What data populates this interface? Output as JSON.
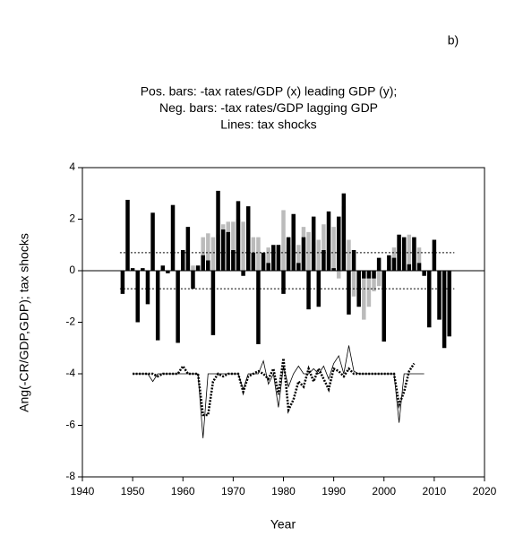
{
  "panel_label": "b)",
  "chart_data": {
    "type": "bar",
    "title_lines": [
      "Pos. bars: -tax rates/GDP (x) leading GDP (y);",
      "Neg. bars: -tax rates/GDP lagging GDP",
      "Lines: tax shocks"
    ],
    "xlabel": "Year",
    "ylabel": "Ang(-CR/GDP,GDP); tax shocks",
    "xlim": [
      1940,
      2020
    ],
    "xticks": [
      1940,
      1950,
      1960,
      1970,
      1980,
      1990,
      2000,
      2010,
      2020
    ],
    "ylim": [
      -8,
      4
    ],
    "yticks": [
      -8,
      -6,
      -4,
      -2,
      0,
      2,
      4
    ],
    "reference_lines": [
      0.7,
      -0.7
    ],
    "series": [
      {
        "kind": "bar",
        "color": "#bbbbbb",
        "x": [
          1960,
          1961,
          1962,
          1963,
          1964,
          1965,
          1966,
          1967,
          1968,
          1969,
          1970,
          1971,
          1972,
          1973,
          1974,
          1975,
          1976,
          1977,
          1978,
          1979,
          1980,
          1981,
          1982,
          1983,
          1984,
          1985,
          1986,
          1987,
          1988,
          1989,
          1990,
          1991,
          1992,
          1993,
          1994,
          1995,
          1996,
          1997,
          1998,
          1999,
          2000,
          2001,
          2002,
          2003,
          2004,
          2005,
          2006,
          2007
        ],
        "values": [
          0.8,
          0.3,
          0.2,
          0.2,
          1.3,
          1.45,
          1.3,
          1.4,
          1.8,
          1.9,
          1.9,
          2.0,
          1.9,
          1.6,
          1.3,
          1.3,
          0.6,
          0.9,
          0.6,
          1.0,
          2.35,
          1.0,
          1.4,
          1.0,
          1.7,
          1.5,
          1.1,
          1.2,
          1.8,
          0.7,
          1.7,
          -0.3,
          2.5,
          1.2,
          -1.0,
          -1.2,
          -1.9,
          -1.4,
          -0.8,
          -0.6,
          -0.3,
          0.2,
          0.9,
          1.2,
          1.0,
          1.4,
          1.3,
          0.9
        ]
      },
      {
        "kind": "bar",
        "color": "#000000",
        "x": [
          1948,
          1949,
          1950,
          1951,
          1952,
          1953,
          1954,
          1955,
          1956,
          1957,
          1958,
          1959,
          1960,
          1961,
          1962,
          1963,
          1964,
          1965,
          1966,
          1967,
          1968,
          1969,
          1970,
          1971,
          1972,
          1973,
          1974,
          1975,
          1976,
          1977,
          1978,
          1979,
          1980,
          1981,
          1982,
          1983,
          1984,
          1985,
          1986,
          1987,
          1988,
          1989,
          1990,
          1991,
          1992,
          1993,
          1994,
          1995,
          1996,
          1997,
          1998,
          1999,
          2000,
          2001,
          2002,
          2003,
          2004,
          2005,
          2006,
          2007,
          2008,
          2009,
          2010,
          2011,
          2012,
          2013
        ],
        "values": [
          -0.9,
          2.75,
          0.1,
          -2.0,
          0.1,
          -1.3,
          2.25,
          -2.7,
          0.2,
          -0.1,
          2.55,
          -2.8,
          0.8,
          1.7,
          -0.7,
          0.2,
          0.6,
          0.4,
          -2.5,
          3.1,
          1.6,
          1.5,
          0.8,
          2.7,
          -0.2,
          2.5,
          0.7,
          -2.85,
          0.7,
          0.3,
          1.0,
          1.0,
          -0.9,
          1.3,
          2.2,
          0.3,
          1.3,
          -1.5,
          2.1,
          -1.4,
          0.8,
          2.3,
          0.1,
          2.1,
          3.0,
          -1.7,
          0.8,
          -1.4,
          -0.3,
          -0.3,
          -0.3,
          0.5,
          -2.75,
          0.6,
          0.5,
          1.4,
          1.3,
          0.25,
          1.3,
          0.3,
          -0.2,
          -2.2,
          1.2,
          -1.9,
          -3.0,
          -2.55
        ]
      },
      {
        "kind": "line",
        "color": "#000000",
        "dash": false,
        "x": [
          1950,
          1951,
          1952,
          1953,
          1954,
          1955,
          1956,
          1957,
          1958,
          1959,
          1960,
          1961,
          1962,
          1963,
          1964,
          1965,
          1966,
          1967,
          1968,
          1969,
          1970,
          1971,
          1972,
          1973,
          1974,
          1975,
          1976,
          1977,
          1978,
          1979,
          1980,
          1981,
          1982,
          1983,
          1984,
          1985,
          1986,
          1987,
          1988,
          1989,
          1990,
          1991,
          1992,
          1993,
          1994,
          1995,
          1996,
          1997,
          1998,
          1999,
          2000,
          2001,
          2002,
          2003,
          2004,
          2005,
          2006,
          2007,
          2008
        ],
        "values": [
          -4,
          -4,
          -4,
          -4,
          -4.3,
          -4,
          -4,
          -4,
          -4,
          -4,
          -4,
          -4,
          -4,
          -4,
          -6.5,
          -4,
          -4,
          -4,
          -4,
          -4,
          -4,
          -4,
          -4.6,
          -4,
          -4,
          -4,
          -3.5,
          -4.4,
          -4,
          -5.3,
          -3.7,
          -4.5,
          -4,
          -3.7,
          -4,
          -4,
          -3.8,
          -4,
          -3.7,
          -4.2,
          -3.6,
          -3.3,
          -4,
          -2.9,
          -3.9,
          -4,
          -4,
          -4,
          -4,
          -4,
          -4,
          -4,
          -4,
          -5.9,
          -4,
          -4,
          -4,
          -4,
          -4
        ]
      },
      {
        "kind": "line",
        "color": "#000000",
        "dash": true,
        "x": [
          1950,
          1951,
          1952,
          1953,
          1954,
          1955,
          1956,
          1957,
          1958,
          1959,
          1960,
          1961,
          1962,
          1963,
          1964,
          1965,
          1966,
          1967,
          1968,
          1969,
          1970,
          1971,
          1972,
          1973,
          1974,
          1975,
          1976,
          1977,
          1978,
          1979,
          1980,
          1981,
          1982,
          1983,
          1984,
          1985,
          1986,
          1987,
          1988,
          1989,
          1990,
          1991,
          1992,
          1993,
          1994,
          1995,
          1996,
          1997,
          1998,
          1999,
          2000,
          2001,
          2002,
          2003,
          2004,
          2005,
          2006
        ],
        "values": [
          -4,
          -4,
          -4,
          -4,
          -4,
          -4.1,
          -4,
          -4,
          -4,
          -4,
          -3.7,
          -4,
          -4,
          -4,
          -5.6,
          -5.6,
          -4.3,
          -4,
          -4.1,
          -4,
          -4,
          -4,
          -4.7,
          -4.1,
          -4,
          -3.9,
          -4,
          -4.2,
          -3.8,
          -4.8,
          -3.4,
          -5.4,
          -5.0,
          -4.3,
          -4.5,
          -3.8,
          -4.3,
          -3.8,
          -4.2,
          -4.6,
          -3.8,
          -3.9,
          -4.1,
          -3.8,
          -4,
          -4,
          -4,
          -4,
          -4,
          -4,
          -4,
          -4,
          -4,
          -5.2,
          -4.7,
          -3.9,
          -3.6
        ]
      }
    ]
  }
}
